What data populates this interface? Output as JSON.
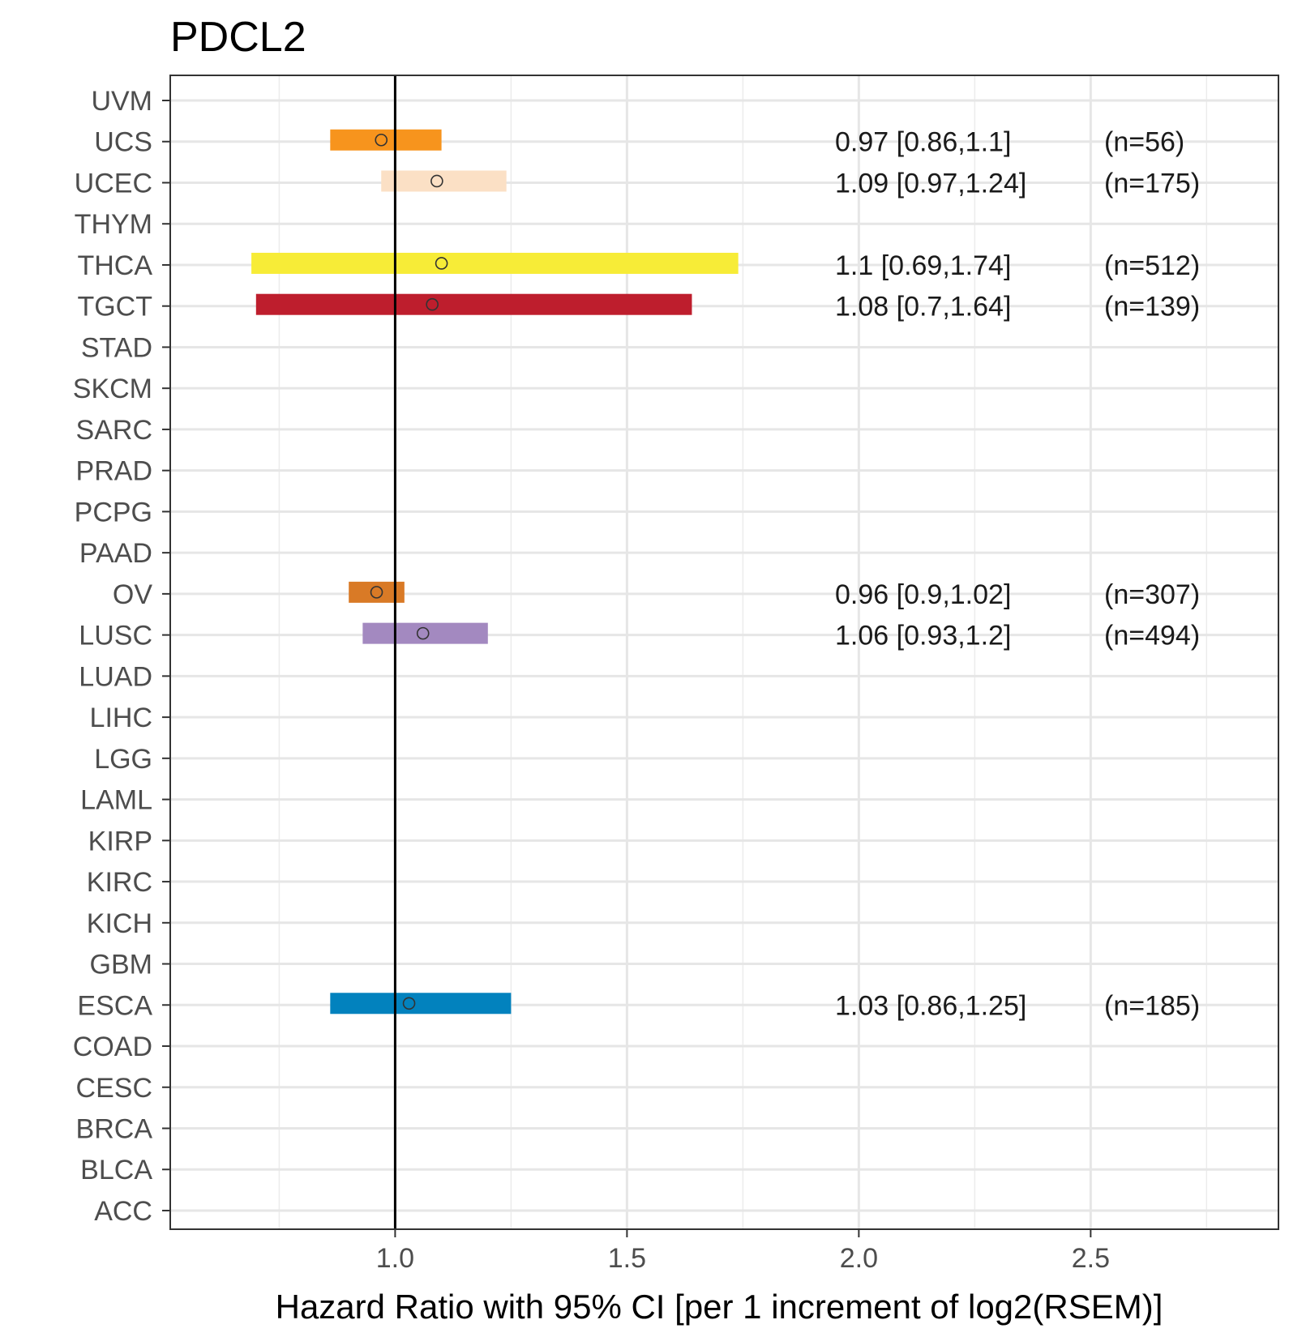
{
  "chart_data": {
    "type": "forest",
    "title": "PDCL2",
    "xlabel": "Hazard Ratio with 95% CI [per 1 increment of log2(RSEM)]",
    "ylabel": "",
    "xlim": [
      0.515,
      2.905
    ],
    "xticks": [
      1.0,
      1.5,
      2.0,
      2.5
    ],
    "xtick_labels": [
      "1.0",
      "1.5",
      "2.0",
      "2.5"
    ],
    "reference_line": 1.0,
    "grid": true,
    "categories": [
      "UVM",
      "UCS",
      "UCEC",
      "THYM",
      "THCA",
      "TGCT",
      "STAD",
      "SKCM",
      "SARC",
      "PRAD",
      "PCPG",
      "PAAD",
      "OV",
      "LUSC",
      "LUAD",
      "LIHC",
      "LGG",
      "LAML",
      "KIRP",
      "KIRC",
      "KICH",
      "GBM",
      "ESCA",
      "COAD",
      "CESC",
      "BRCA",
      "BLCA",
      "ACC"
    ],
    "series": [
      {
        "category": "UCS",
        "hr": 0.97,
        "low": 0.86,
        "high": 1.1,
        "color": "#f7941d",
        "label": "0.97 [0.86,1.1]",
        "n_label": "(n=56)"
      },
      {
        "category": "UCEC",
        "hr": 1.09,
        "low": 0.97,
        "high": 1.24,
        "color": "#fbe0c5",
        "label": "1.09 [0.97,1.24]",
        "n_label": "(n=175)"
      },
      {
        "category": "THCA",
        "hr": 1.1,
        "low": 0.69,
        "high": 1.74,
        "color": "#f7ec37",
        "label": "1.1 [0.69,1.74]",
        "n_label": "(n=512)"
      },
      {
        "category": "TGCT",
        "hr": 1.08,
        "low": 0.7,
        "high": 1.64,
        "color": "#be1e2d",
        "label": "1.08 [0.7,1.64]",
        "n_label": "(n=139)"
      },
      {
        "category": "OV",
        "hr": 0.96,
        "low": 0.9,
        "high": 1.02,
        "color": "#d97a26",
        "label": "0.96 [0.9,1.02]",
        "n_label": "(n=307)"
      },
      {
        "category": "LUSC",
        "hr": 1.06,
        "low": 0.93,
        "high": 1.2,
        "color": "#a389c0",
        "label": "1.06 [0.93,1.2]",
        "n_label": "(n=494)"
      },
      {
        "category": "ESCA",
        "hr": 1.03,
        "low": 0.86,
        "high": 1.25,
        "color": "#0282be",
        "label": "1.03 [0.86,1.25]",
        "n_label": "(n=185)"
      }
    ]
  }
}
